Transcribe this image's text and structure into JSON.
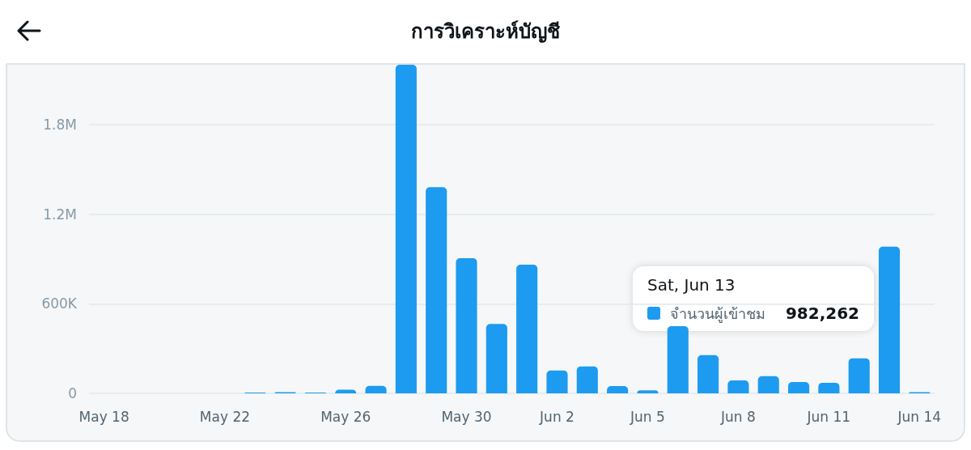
{
  "chart_data": {
    "type": "bar",
    "title": "การวิเคราะห์บัญชี",
    "categories": [
      "May 18",
      null,
      null,
      null,
      "May 22",
      null,
      null,
      null,
      "May 26",
      null,
      null,
      null,
      "May 30",
      null,
      null,
      "Jun 2",
      null,
      null,
      "Jun 5",
      null,
      null,
      "Jun 8",
      null,
      null,
      "Jun 11",
      null,
      null,
      "Jun 14"
    ],
    "series": [
      {
        "name": "จำนวนผู้เข้าชม",
        "color": "#1d9bf0",
        "values": [
          0,
          0,
          0,
          0,
          0,
          5000,
          8000,
          5000,
          25000,
          50000,
          2200000,
          1380000,
          905000,
          464000,
          862000,
          153000,
          180000,
          49000,
          20000,
          450000,
          256000,
          87000,
          115000,
          76000,
          71000,
          235000,
          982262,
          8000
        ]
      }
    ],
    "ylim": [
      0,
      2200000
    ],
    "yticks": [
      {
        "value": 0,
        "label": "0"
      },
      {
        "value": 600000,
        "label": "600K"
      },
      {
        "value": 1200000,
        "label": "1.2M"
      },
      {
        "value": 1800000,
        "label": "1.8M"
      }
    ],
    "grid": "y",
    "annotations": [
      "Sat, Jun 13",
      "982,262"
    ]
  }
}
